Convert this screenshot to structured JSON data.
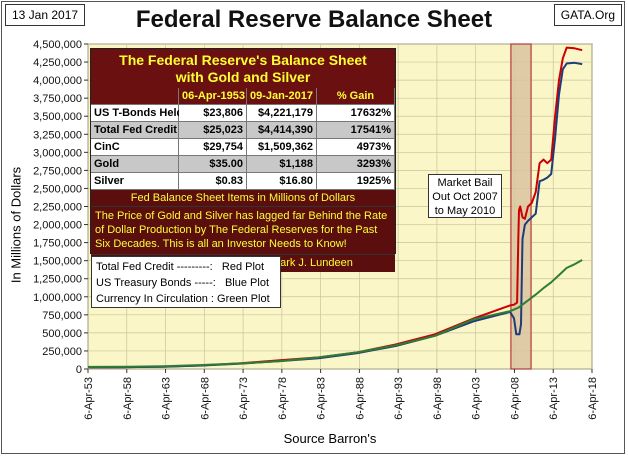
{
  "header": {
    "date": "13 Jan 2017",
    "source_tag": "GATA.Org"
  },
  "chart_data": {
    "type": "line",
    "title": "Federal Reserve Balance Sheet",
    "xlabel": "Source Barron's",
    "ylabel": "In Millions of Dollars",
    "x_tick_labels": [
      "6-Apr-53",
      "6-Apr-58",
      "6-Apr-63",
      "6-Apr-68",
      "6-Apr-73",
      "6-Apr-78",
      "6-Apr-83",
      "6-Apr-88",
      "6-Apr-93",
      "6-Apr-98",
      "6-Apr-03",
      "6-Apr-08",
      "6-Apr-13",
      "6-Apr-18"
    ],
    "x_range": [
      1953.26,
      2018.26
    ],
    "y_tick_labels": [
      "0",
      "250,000",
      "500,000",
      "750,000",
      "1,000,000",
      "1,250,000",
      "1,500,000",
      "1,750,000",
      "2,000,000",
      "2,250,000",
      "2,500,000",
      "2,750,000",
      "3,000,000",
      "3,250,000",
      "3,500,000",
      "3,750,000",
      "4,000,000",
      "4,250,000",
      "4,500,000"
    ],
    "ylim": [
      0,
      4500000
    ],
    "grid": true,
    "highlight_span": [
      2007.8,
      2010.4
    ],
    "series": [
      {
        "name": "Total Fed Credit",
        "color": "#cc0000",
        "points": [
          [
            1953.3,
            25000
          ],
          [
            1958,
            27000
          ],
          [
            1963,
            33000
          ],
          [
            1968,
            50000
          ],
          [
            1973,
            80000
          ],
          [
            1978,
            120000
          ],
          [
            1983,
            160000
          ],
          [
            1988,
            230000
          ],
          [
            1993,
            340000
          ],
          [
            1998,
            480000
          ],
          [
            2003,
            700000
          ],
          [
            2007.7,
            880000
          ],
          [
            2008.2,
            890000
          ],
          [
            2008.6,
            920000
          ],
          [
            2008.75,
            1800000
          ],
          [
            2008.85,
            2200000
          ],
          [
            2009.0,
            2250000
          ],
          [
            2009.3,
            2100000
          ],
          [
            2009.6,
            2080000
          ],
          [
            2010.0,
            2250000
          ],
          [
            2010.5,
            2300000
          ],
          [
            2011.0,
            2450000
          ],
          [
            2011.5,
            2850000
          ],
          [
            2012.0,
            2900000
          ],
          [
            2012.5,
            2850000
          ],
          [
            2013.0,
            2900000
          ],
          [
            2013.5,
            3500000
          ],
          [
            2014.0,
            4000000
          ],
          [
            2014.5,
            4300000
          ],
          [
            2015.0,
            4450000
          ],
          [
            2016.0,
            4440000
          ],
          [
            2017.0,
            4414390
          ]
        ]
      },
      {
        "name": "US Treasury Bonds",
        "color": "#1f3b7a",
        "points": [
          [
            1953.3,
            23806
          ],
          [
            1958,
            25000
          ],
          [
            1963,
            31000
          ],
          [
            1968,
            48000
          ],
          [
            1973,
            75000
          ],
          [
            1978,
            110000
          ],
          [
            1983,
            150000
          ],
          [
            1988,
            220000
          ],
          [
            1993,
            320000
          ],
          [
            1998,
            460000
          ],
          [
            2003,
            660000
          ],
          [
            2007.7,
            790000
          ],
          [
            2008.2,
            700000
          ],
          [
            2008.5,
            480000
          ],
          [
            2008.9,
            480000
          ],
          [
            2009.1,
            620000
          ],
          [
            2009.3,
            1800000
          ],
          [
            2009.6,
            2000000
          ],
          [
            2010.0,
            2050000
          ],
          [
            2010.5,
            2100000
          ],
          [
            2011.0,
            2150000
          ],
          [
            2011.5,
            2600000
          ],
          [
            2012.0,
            2620000
          ],
          [
            2012.5,
            2650000
          ],
          [
            2013.0,
            2700000
          ],
          [
            2013.5,
            3200000
          ],
          [
            2014.0,
            3800000
          ],
          [
            2014.5,
            4150000
          ],
          [
            2015.0,
            4230000
          ],
          [
            2016.0,
            4240000
          ],
          [
            2017.0,
            4221179
          ]
        ]
      },
      {
        "name": "Currency In Circulation",
        "color": "#2e7d32",
        "points": [
          [
            1953.3,
            29754
          ],
          [
            1958,
            31000
          ],
          [
            1963,
            38000
          ],
          [
            1968,
            55000
          ],
          [
            1973,
            78000
          ],
          [
            1978,
            110000
          ],
          [
            1983,
            160000
          ],
          [
            1988,
            230000
          ],
          [
            1993,
            330000
          ],
          [
            1998,
            460000
          ],
          [
            2003,
            690000
          ],
          [
            2007.7,
            800000
          ],
          [
            2008.8,
            850000
          ],
          [
            2010.0,
            950000
          ],
          [
            2011.0,
            1030000
          ],
          [
            2012.0,
            1120000
          ],
          [
            2013.0,
            1200000
          ],
          [
            2014.0,
            1300000
          ],
          [
            2015.0,
            1400000
          ],
          [
            2016.0,
            1450000
          ],
          [
            2017.0,
            1509362
          ]
        ]
      }
    ]
  },
  "table": {
    "title_line1": "The Federal Reserve's Balance Sheet",
    "title_line2": "with Gold and Silver",
    "columns": [
      "",
      "06-Apr-1953",
      "09-Jan-2017",
      "% Gain"
    ],
    "rows": [
      {
        "label": "US T-Bonds Held",
        "v1953": "$23,806",
        "v2017": "$4,221,179",
        "gain": "17632%"
      },
      {
        "label": "Total Fed Credit",
        "v1953": "$25,023",
        "v2017": "$4,414,390",
        "gain": "17541%"
      },
      {
        "label": "CinC",
        "v1953": "$29,754",
        "v2017": "$1,509,362",
        "gain": "4973%"
      },
      {
        "label": "Gold",
        "v1953": "$35.00",
        "v2017": "$1,188",
        "gain": "3293%"
      },
      {
        "label": "Silver",
        "v1953": "$0.83",
        "v2017": "$16.80",
        "gain": "1925%"
      }
    ],
    "subtitle": "Fed Balance Sheet Items in Millions of Dollars",
    "note": "The Price of Gold and Silver has lagged far Behind the Rate of Dollar Production by The Federal Reserves for the Past Six Decades.  This is all an Investor Needs to Know!",
    "credit": "Source Barron's   Graphic by Mark J. Lundeen"
  },
  "legend": {
    "line1": "Total Fed Credit ---------:   Red Plot",
    "line2": "US Treasury Bonds -----:   Blue Plot",
    "line3": "Currency In Circulation : Green Plot"
  },
  "annotation": {
    "line1": "Market Bail",
    "line2": "Out Oct 2007",
    "line3": "to May 2010"
  }
}
